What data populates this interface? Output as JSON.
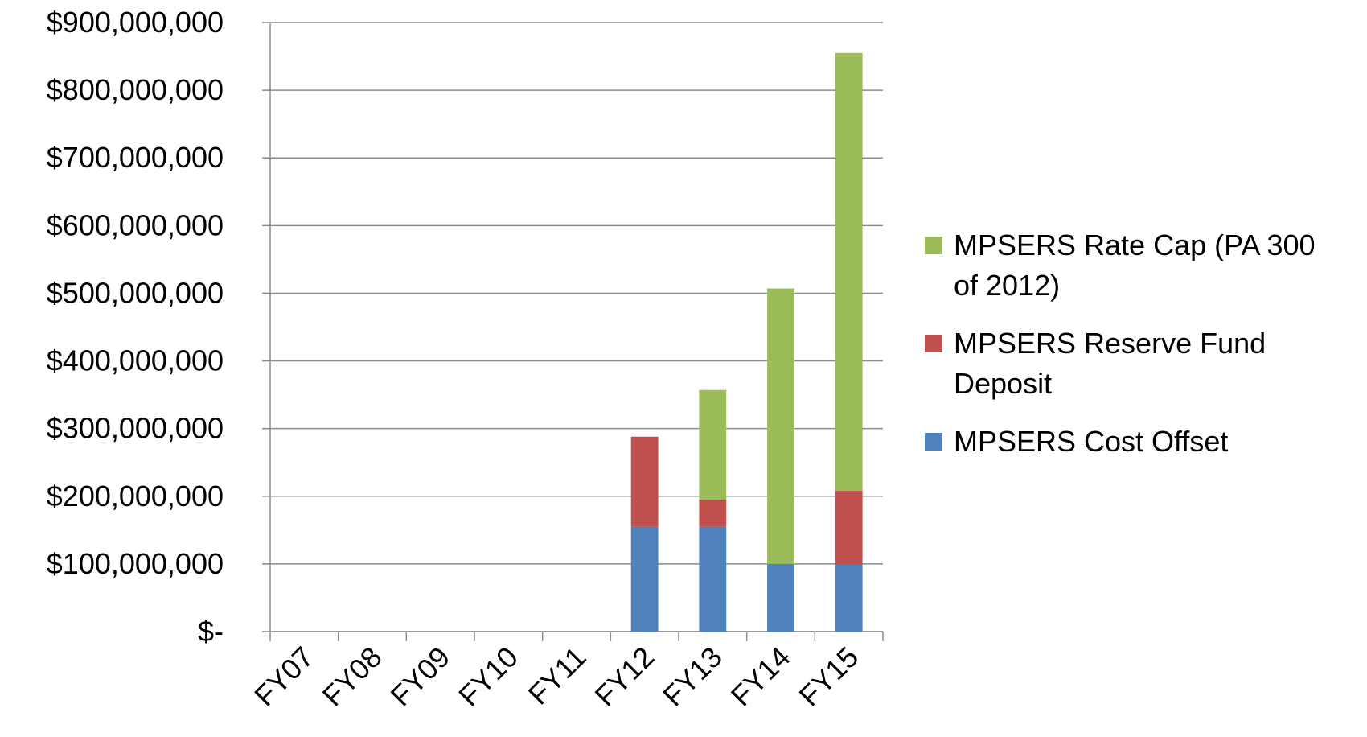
{
  "chart_data": {
    "type": "bar",
    "stacked": true,
    "categories": [
      "FY07",
      "FY08",
      "FY09",
      "FY10",
      "FY11",
      "FY12",
      "FY13",
      "FY14",
      "FY15"
    ],
    "series": [
      {
        "name": "MPSERS Cost Offset",
        "color": "#4f81bd",
        "values": [
          0,
          0,
          0,
          0,
          0,
          155000000,
          155000000,
          100000000,
          100000000
        ]
      },
      {
        "name": "MPSERS Reserve Fund Deposit",
        "color": "#c0504d",
        "values": [
          0,
          0,
          0,
          0,
          0,
          133000000,
          40000000,
          0,
          108000000
        ]
      },
      {
        "name": "MPSERS Rate Cap (PA 300 of 2012)",
        "color": "#9bbb59",
        "values": [
          0,
          0,
          0,
          0,
          0,
          0,
          162000000,
          407000000,
          647000000
        ]
      }
    ],
    "ylim": [
      0,
      900000000
    ],
    "yticks": [
      0,
      100000000,
      200000000,
      300000000,
      400000000,
      500000000,
      600000000,
      700000000,
      800000000,
      900000000
    ],
    "ytick_labels": [
      "$-",
      "$100,000,000",
      "$200,000,000",
      "$300,000,000",
      "$400,000,000",
      "$500,000,000",
      "$600,000,000",
      "$700,000,000",
      "$800,000,000",
      "$900,000,000"
    ],
    "grid": true,
    "legend": "right",
    "legend_order": [
      "MPSERS Rate Cap (PA 300 of 2012)",
      "MPSERS Reserve Fund Deposit",
      "MPSERS Cost Offset"
    ]
  }
}
